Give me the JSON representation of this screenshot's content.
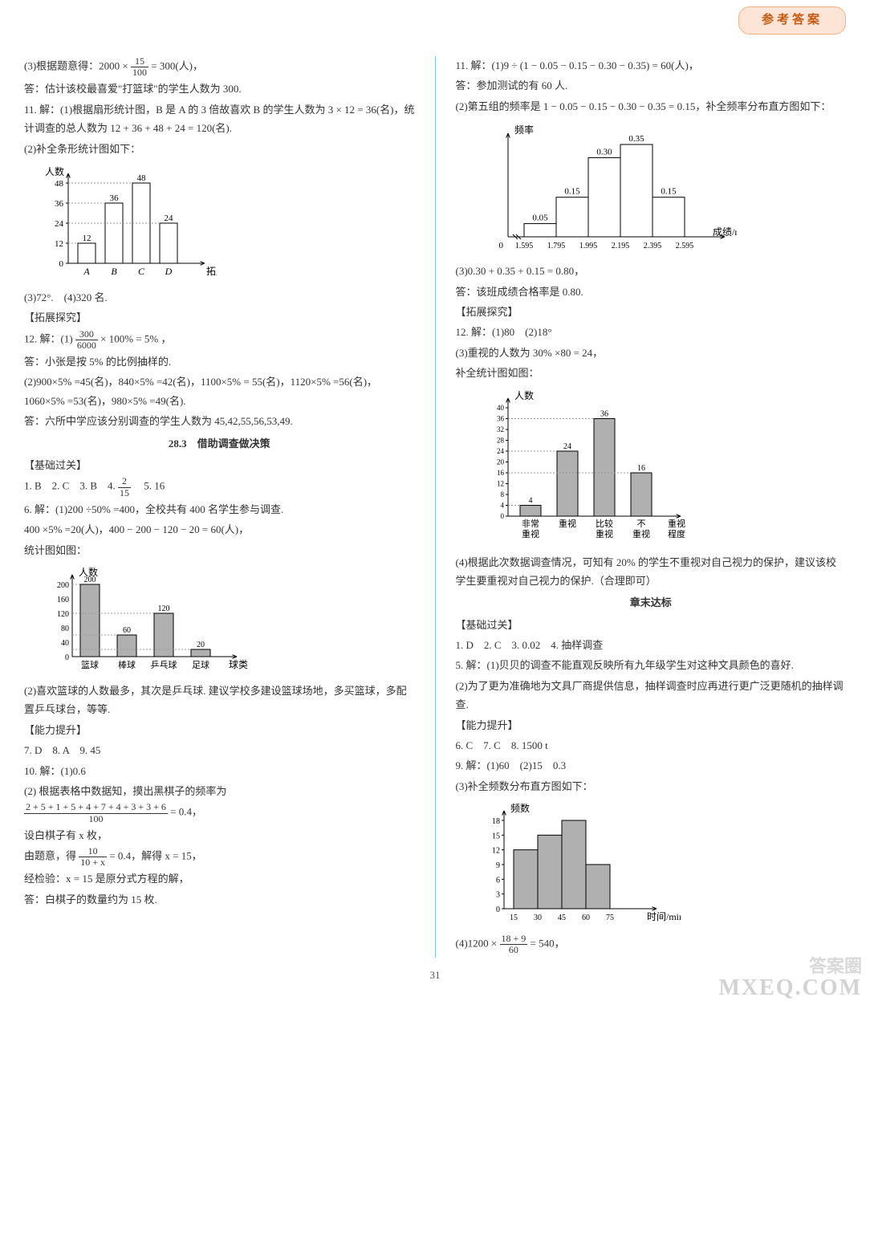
{
  "header": {
    "badge": "参考答案"
  },
  "page_number": "31",
  "watermark_main": "MXEQ.COM",
  "watermark_sub": "答案圈",
  "left": {
    "p1": "(3)根据题意得：2000 × ",
    "p1_frac_num": "15",
    "p1_frac_den": "100",
    "p1_tail": " = 300(人)，",
    "p2": "答：估计该校最喜爱\"打篮球\"的学生人数为 300.",
    "p3": "11. 解：(1)根据扇形统计图，B 是 A 的 3 倍故喜欢 B 的学生人数为 3 × 12 = 36(名)，统计调查的总人数为 12 + 36 + 48 + 24 = 120(名).",
    "p4": "(2)补全条形统计图如下：",
    "chart1": {
      "ylabel": "人数",
      "xlabel": "拓展课程",
      "categories": [
        "A",
        "B",
        "C",
        "D"
      ],
      "values": [
        12,
        36,
        48,
        24
      ],
      "value_labels": [
        "12",
        "36",
        "48",
        "24"
      ],
      "yticks": [
        0,
        12,
        24,
        36,
        48
      ],
      "bar_fill": "#ffffff",
      "bar_stroke": "#000000",
      "axis_color": "#000000"
    },
    "p5": "(3)72°.　(4)320 名.",
    "p6": "【拓展探究】",
    "p7_a": "12. 解：(1)",
    "p7_num": "300",
    "p7_den": "6000",
    "p7_b": " × 100% = 5% ，",
    "p8": "答：小张是按 5% 的比例抽样的.",
    "p9": "(2)900×5% =45(名)，840×5% =42(名)，1100×5% = 55(名)，1120×5% =56(名)，1060×5% =53(名)，980×5% =49(名).",
    "p10": "答：六所中学应该分别调查的学生人数为 45,42,55,56,53,49.",
    "sec_title": "28.3　借助调查做决策",
    "p11": "【基础过关】",
    "p12_a": "1. B　2. C　3. B　4. ",
    "p12_num": "2",
    "p12_den": "15",
    "p12_b": "　5. 16",
    "p13": "6. 解：(1)200 ÷50% =400，全校共有 400 名学生参与调查.",
    "p14": "400 ×5% =20(人)，400 − 200 − 120 − 20 = 60(人)，",
    "p15": "统计图如图：",
    "chart2": {
      "ylabel": "人数",
      "xlabel": "球类",
      "categories": [
        "篮球",
        "棒球",
        "乒乓球",
        "足球"
      ],
      "values": [
        200,
        60,
        120,
        20
      ],
      "value_labels": [
        "200",
        "60",
        "120",
        "20"
      ],
      "yticks": [
        0,
        40,
        80,
        120,
        160,
        200
      ],
      "bar_fill": "#b0b0b0",
      "bar_stroke": "#000000",
      "axis_color": "#000000"
    },
    "p16": "(2)喜欢篮球的人数最多，其次是乒乓球. 建议学校多建设篮球场地，多买篮球，多配置乒乓球台，等等.",
    "p17": "【能力提升】",
    "p18": "7. D　8. A　9. 45",
    "p19": "10. 解：(1)0.6",
    "p20": "(2) 根据表格中数据知，摸出黑棋子的频率为",
    "p21_num": "2 + 5 + 1 + 5 + 4 + 7 + 4 + 3 + 3 + 6",
    "p21_den": "100",
    "p21_tail": "= 0.4，",
    "p22": "设白棋子有 x 枚，",
    "p23_a": "由题意，得",
    "p23_num": "10",
    "p23_den": "10 + x",
    "p23_b": "= 0.4，解得 x = 15，",
    "p24": "经检验：x = 15 是原分式方程的解，",
    "p25": "答：白棋子的数量约为 15 枚."
  },
  "right": {
    "p1": "11. 解：(1)9 ÷ (1 − 0.05 − 0.15 − 0.30 − 0.35) = 60(人)，",
    "p2": "答：参加测试的有 60 人.",
    "p3": "(2)第五组的频率是 1 − 0.05 − 0.15 − 0.30 − 0.35 = 0.15，补全频率分布直方图如下：",
    "chart3": {
      "ylabel": "频率",
      "xlabel": "成绩/m",
      "edges": [
        "0",
        "1.595",
        "1.795",
        "1.995",
        "2.195",
        "2.395",
        "2.595"
      ],
      "values": [
        0.05,
        0.15,
        0.3,
        0.35,
        0.15
      ],
      "value_labels": [
        "0.05",
        "0.15",
        "0.30",
        "0.35",
        "0.15"
      ],
      "bar_fill": "#ffffff",
      "bar_stroke": "#000000",
      "axis_color": "#000000"
    },
    "p4": "(3)0.30 + 0.35 + 0.15 = 0.80，",
    "p5": "答：该班成绩合格率是 0.80.",
    "p6": "【拓展探究】",
    "p7": "12. 解：(1)80　(2)18°",
    "p8": "(3)重视的人数为 30% ×80 = 24，",
    "p9": "补全统计图如图：",
    "chart4": {
      "ylabel": "人数",
      "xlabel": "重视程度",
      "categories": [
        "非常重视",
        "重视",
        "比较重视",
        "不重视"
      ],
      "cat_l1": [
        "非常",
        "重视",
        "比较",
        "不"
      ],
      "cat_l2": [
        "重视",
        "",
        "重视",
        "重视"
      ],
      "values": [
        4,
        24,
        36,
        16
      ],
      "value_labels": [
        "4",
        "24",
        "36",
        "16"
      ],
      "yticks": [
        0,
        4,
        8,
        12,
        16,
        20,
        24,
        28,
        32,
        36,
        40
      ],
      "bar_fill": "#b0b0b0",
      "bar_stroke": "#000000",
      "axis_color": "#000000"
    },
    "p10": "(4)根据此次数据调查情况，可知有 20% 的学生不重视对自己视力的保护，建议该校学生要重视对自己视力的保护.（合理即可）",
    "sec_title": "章末达标",
    "p11": "【基础过关】",
    "p12": "1. D　2. C　3. 0.02　4. 抽样调查",
    "p13": "5. 解：(1)贝贝的调查不能直观反映所有九年级学生对这种文具颜色的喜好.",
    "p14": "(2)为了更为准确地为文具厂商提供信息，抽样调查时应再进行更广泛更随机的抽样调查.",
    "p15": "【能力提升】",
    "p16": "6. C　7. C　8. 1500 t",
    "p17": "9. 解：(1)60　(2)15　0.3",
    "p18": "(3)补全频数分布直方图如下：",
    "chart5": {
      "ylabel": "频数",
      "xlabel": "时间/min",
      "edges": [
        "15",
        "30",
        "45",
        "60",
        "75"
      ],
      "values": [
        12,
        15,
        18,
        9
      ],
      "yticks": [
        0,
        3,
        6,
        9,
        12,
        15,
        18
      ],
      "bar_fill": "#b0b0b0",
      "bar_stroke": "#000000",
      "axis_color": "#000000"
    },
    "p19_a": "(4)1200 × ",
    "p19_num": "18 + 9",
    "p19_den": "60",
    "p19_b": " = 540，"
  }
}
